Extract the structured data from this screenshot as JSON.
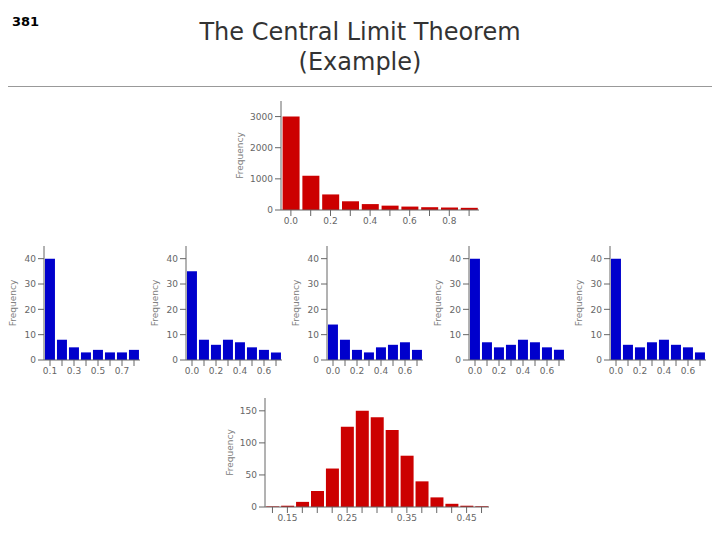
{
  "title": "The Central Limit Theorem\n(Example)",
  "annotations": [
    "381"
  ],
  "chart_data": [
    {
      "type": "bar",
      "categories": [
        "0.0",
        null,
        "0.2",
        null,
        "0.4",
        null,
        "0.6",
        null,
        "0.8",
        null
      ],
      "values": [
        3000,
        1100,
        500,
        280,
        190,
        140,
        110,
        90,
        80,
        70
      ],
      "color": "#CC0000",
      "ylabel": "Frequency",
      "ylim": [
        0,
        3500
      ],
      "yticks": [
        0,
        1000,
        2000,
        3000
      ],
      "grid": false
    },
    {
      "type": "bar",
      "categories": [
        "0.1",
        null,
        "0.3",
        null,
        "0.5",
        null,
        "0.7",
        null
      ],
      "values": [
        40,
        8,
        5,
        3,
        4,
        3,
        3,
        4
      ],
      "color": "#0000CC",
      "ylabel": "Frequency",
      "ylim": [
        0,
        45
      ],
      "yticks": [
        0,
        10,
        20,
        30,
        40
      ],
      "grid": false
    },
    {
      "type": "bar",
      "categories": [
        "0.0",
        null,
        "0.2",
        null,
        "0.4",
        null,
        "0.6",
        null
      ],
      "values": [
        35,
        8,
        6,
        8,
        7,
        5,
        4,
        3
      ],
      "color": "#0000CC",
      "ylabel": "Frequency",
      "ylim": [
        0,
        45
      ],
      "yticks": [
        0,
        10,
        20,
        30,
        40
      ],
      "grid": false
    },
    {
      "type": "bar",
      "categories": [
        "0.0",
        null,
        "0.2",
        null,
        "0.4",
        null,
        "0.6",
        null
      ],
      "values": [
        14,
        8,
        4,
        3,
        5,
        6,
        7,
        4
      ],
      "color": "#0000CC",
      "ylabel": "Frequency",
      "ylim": [
        0,
        45
      ],
      "yticks": [
        0,
        10,
        20,
        30,
        40
      ],
      "grid": false
    },
    {
      "type": "bar",
      "categories": [
        "0.0",
        null,
        "0.2",
        null,
        "0.4",
        null,
        "0.6",
        null
      ],
      "values": [
        40,
        7,
        5,
        6,
        8,
        7,
        5,
        4
      ],
      "color": "#0000CC",
      "ylabel": "Frequency",
      "ylim": [
        0,
        45
      ],
      "yticks": [
        0,
        10,
        20,
        30,
        40
      ],
      "grid": false
    },
    {
      "type": "bar",
      "categories": [
        "0.0",
        null,
        "0.2",
        null,
        "0.4",
        null,
        "0.6",
        null
      ],
      "values": [
        40,
        6,
        5,
        7,
        8,
        6,
        5,
        3
      ],
      "color": "#0000CC",
      "ylabel": "Frequency",
      "ylim": [
        0,
        45
      ],
      "yticks": [
        0,
        10,
        20,
        30,
        40
      ],
      "grid": false
    },
    {
      "type": "bar",
      "categories": [
        null,
        "0.15",
        null,
        null,
        null,
        "0.25",
        null,
        null,
        null,
        "0.35",
        null,
        null,
        null,
        "0.45",
        null
      ],
      "values": [
        1,
        2,
        8,
        25,
        60,
        125,
        150,
        140,
        120,
        80,
        40,
        15,
        5,
        2,
        1
      ],
      "color": "#CC0000",
      "ylabel": "Frequency",
      "ylim": [
        0,
        170
      ],
      "yticks": [
        0,
        50,
        100,
        150
      ],
      "grid": false
    }
  ]
}
